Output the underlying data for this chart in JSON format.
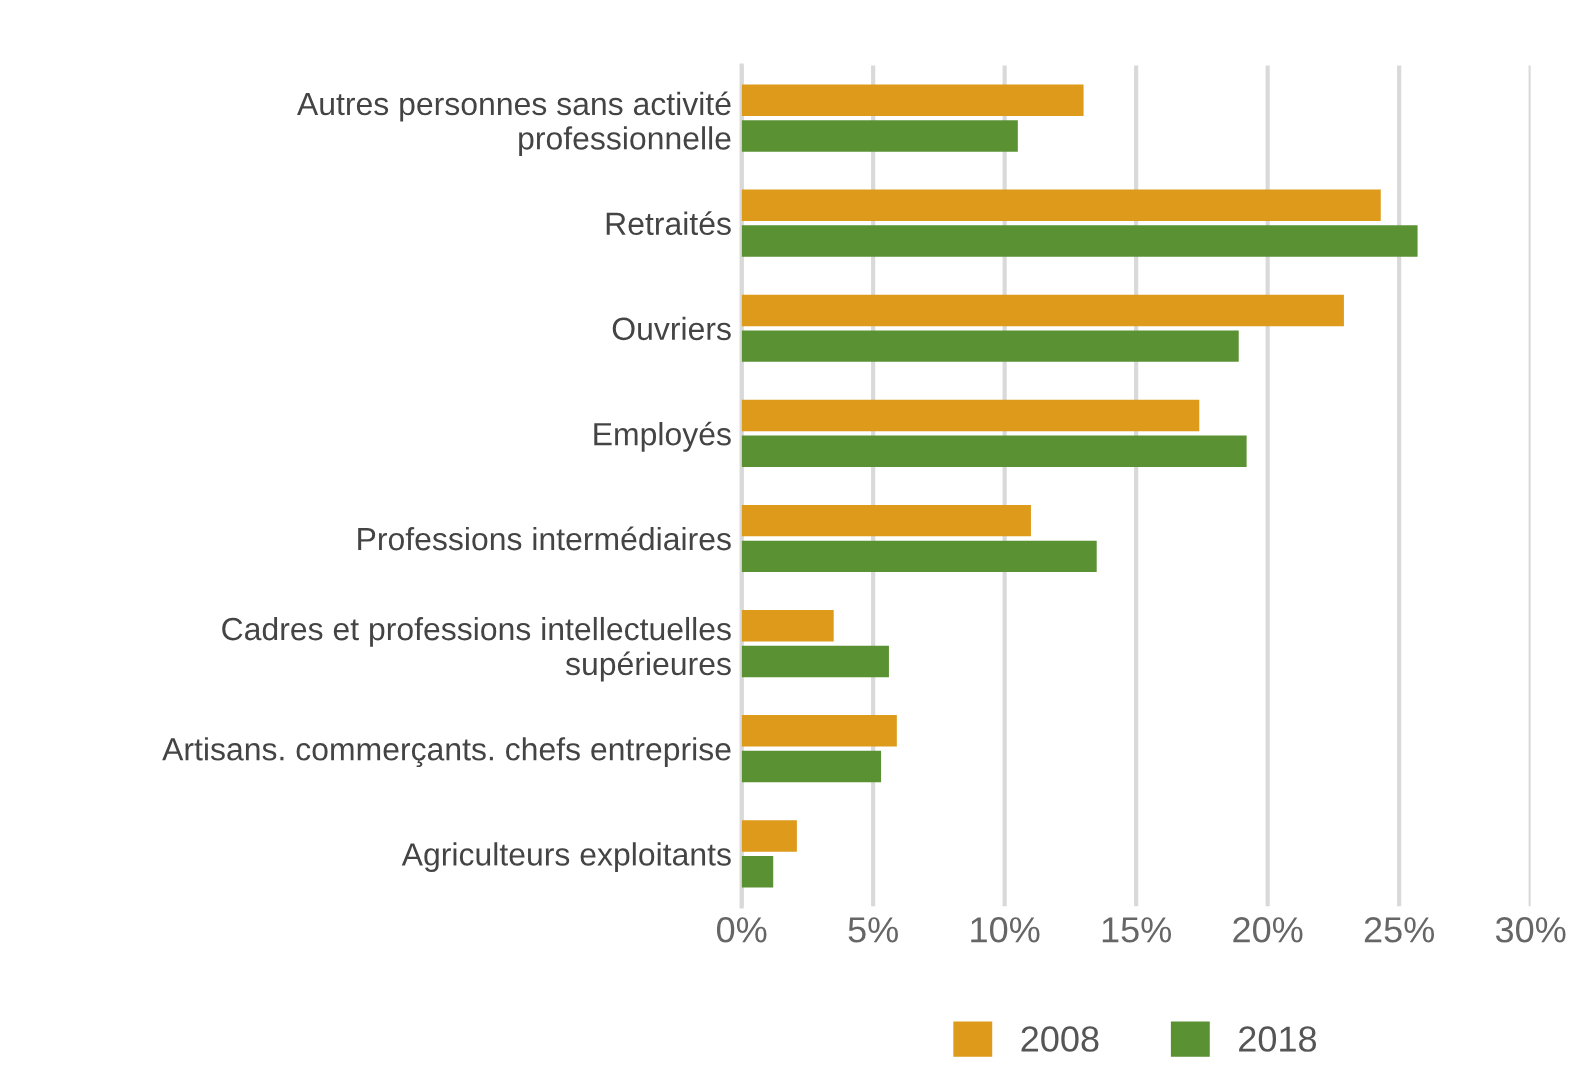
{
  "chart_data": {
    "type": "bar",
    "orientation": "horizontal",
    "categories": [
      "Autres personnes sans activité\nprofessionnelle",
      "Retraités",
      "Ouvriers",
      "Employés",
      "Professions intermédiaires",
      "Cadres et professions intellectuelles\nsupérieures",
      "Artisans. commerçants. chefs entreprise",
      "Agriculteurs exploitants"
    ],
    "series": [
      {
        "name": "2008",
        "color": "#de9b1b",
        "values": [
          13.0,
          24.3,
          22.9,
          17.4,
          11.0,
          3.5,
          5.9,
          2.1
        ]
      },
      {
        "name": "2018",
        "color": "#5a9132",
        "values": [
          10.5,
          25.7,
          18.9,
          19.2,
          13.5,
          5.6,
          5.3,
          1.2
        ]
      }
    ],
    "xlim": [
      0,
      30
    ],
    "xticks": [
      {
        "value": 0,
        "label": "0%"
      },
      {
        "value": 5,
        "label": "5%"
      },
      {
        "value": 10,
        "label": "10%"
      },
      {
        "value": 15,
        "label": "15%"
      },
      {
        "value": 20,
        "label": "20%"
      },
      {
        "value": 25,
        "label": "25%"
      },
      {
        "value": 30,
        "label": "30%"
      }
    ],
    "grid": "x",
    "legend": "bottom"
  }
}
